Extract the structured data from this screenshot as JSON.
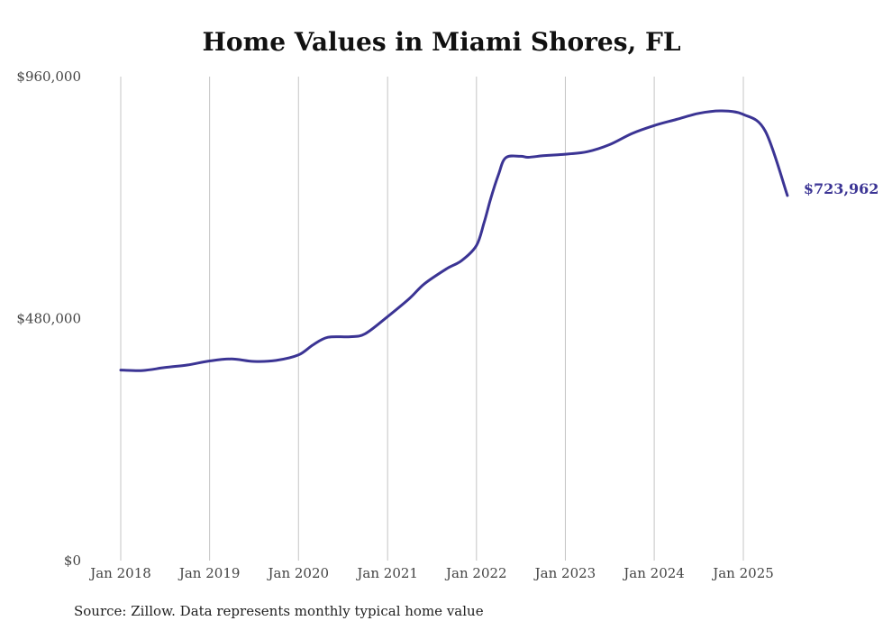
{
  "chart_data": {
    "type": "line",
    "title": "Home Values in Miami Shores, FL",
    "source": "Source: Zillow. Data represents monthly typical home value",
    "xlabel": "",
    "ylabel": "",
    "ylim": [
      0,
      960000
    ],
    "y_ticks": [
      "$0",
      "$480,000",
      "$960,000"
    ],
    "x_ticks": [
      "Jan 2018",
      "Jan 2019",
      "Jan 2020",
      "Jan 2021",
      "Jan 2022",
      "Jan 2023",
      "Jan 2024",
      "Jan 2025"
    ],
    "grid": "vertical",
    "line_color": "#3b3494",
    "end_label": "$723,962",
    "series": [
      {
        "name": "",
        "x": [
          "2018-01",
          "2018-04",
          "2018-07",
          "2018-10",
          "2019-01",
          "2019-04",
          "2019-07",
          "2019-10",
          "2020-01",
          "2020-03",
          "2020-05",
          "2020-08",
          "2020-10",
          "2021-01",
          "2021-04",
          "2021-06",
          "2021-09",
          "2021-11",
          "2022-01",
          "2022-02",
          "2022-03",
          "2022-04",
          "2022-05",
          "2022-07",
          "2022-08",
          "2022-10",
          "2022-12",
          "2023-01",
          "2023-04",
          "2023-07",
          "2023-10",
          "2024-01",
          "2024-04",
          "2024-07",
          "2024-10",
          "2025-01",
          "2025-04",
          "2025-07"
        ],
        "y": [
          378000,
          377000,
          383000,
          388000,
          396000,
          400000,
          395000,
          397000,
          408000,
          428000,
          443000,
          444000,
          450000,
          484000,
          520000,
          549000,
          579000,
          595000,
          625000,
          670000,
          719000,
          765000,
          799000,
          802000,
          800000,
          803000,
          805000,
          806000,
          811000,
          825000,
          847000,
          863000,
          875000,
          887000,
          892000,
          885000,
          852000,
          723962
        ]
      }
    ]
  }
}
